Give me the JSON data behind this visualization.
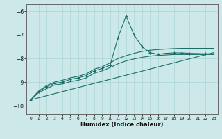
{
  "xlabel": "Humidex (Indice chaleur)",
  "bg_color": "#cde8e8",
  "grid_color": "#aad4d4",
  "line_color": "#1a6e6a",
  "xlim": [
    -0.5,
    23.5
  ],
  "ylim": [
    -10.35,
    -5.7
  ],
  "yticks": [
    -10,
    -9,
    -8,
    -7,
    -6
  ],
  "xticks": [
    0,
    1,
    2,
    3,
    4,
    5,
    6,
    7,
    8,
    9,
    10,
    11,
    12,
    13,
    14,
    15,
    16,
    17,
    18,
    19,
    20,
    21,
    22,
    23
  ],
  "series_main": {
    "x": [
      0,
      1,
      2,
      3,
      4,
      5,
      6,
      7,
      8,
      9,
      10,
      11,
      12,
      13,
      14,
      15,
      16,
      17,
      18,
      19,
      20,
      21,
      22,
      23
    ],
    "y": [
      -9.75,
      -9.4,
      -9.2,
      -9.05,
      -9.0,
      -8.88,
      -8.82,
      -8.72,
      -8.52,
      -8.42,
      -8.28,
      -7.1,
      -6.2,
      -7.0,
      -7.5,
      -7.75,
      -7.82,
      -7.78,
      -7.76,
      -7.76,
      -7.78,
      -7.79,
      -7.8,
      -7.8
    ]
  },
  "series_upper": {
    "x": [
      0,
      1,
      2,
      3,
      4,
      5,
      6,
      7,
      8,
      9,
      10,
      11,
      12,
      13,
      14,
      15,
      16,
      17,
      18,
      19,
      20,
      21,
      22,
      23
    ],
    "y": [
      -9.75,
      -9.38,
      -9.15,
      -9.0,
      -8.92,
      -8.82,
      -8.75,
      -8.65,
      -8.45,
      -8.35,
      -8.18,
      -8.0,
      -7.88,
      -7.78,
      -7.7,
      -7.65,
      -7.62,
      -7.6,
      -7.58,
      -7.57,
      -7.57,
      -7.57,
      -7.57,
      -7.57
    ]
  },
  "series_lower": {
    "x": [
      0,
      1,
      2,
      3,
      4,
      5,
      6,
      7,
      8,
      9,
      10,
      11,
      12,
      13,
      14,
      15,
      16,
      17,
      18,
      19,
      20,
      21,
      22,
      23
    ],
    "y": [
      -9.75,
      -9.45,
      -9.28,
      -9.12,
      -9.08,
      -8.98,
      -8.92,
      -8.82,
      -8.62,
      -8.52,
      -8.38,
      -8.22,
      -8.1,
      -8.02,
      -7.95,
      -7.9,
      -7.87,
      -7.85,
      -7.83,
      -7.83,
      -7.83,
      -7.83,
      -7.83,
      -7.83
    ]
  },
  "series_straight": {
    "x": [
      0,
      23
    ],
    "y": [
      -9.75,
      -7.75
    ]
  }
}
